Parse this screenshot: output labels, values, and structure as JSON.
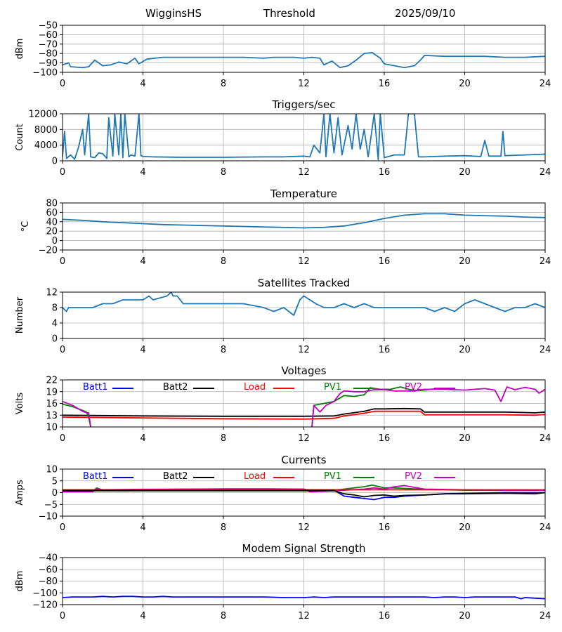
{
  "header": {
    "station": "WigginsHS",
    "mode": "Threshold",
    "date": "2025/09/10"
  },
  "colors": {
    "default": "#1f77b4",
    "batt1": "#0000ff",
    "batt2": "#000000",
    "load": "#ff0000",
    "pv1": "#008000",
    "pv2": "#c000c0",
    "grid": "#b0b0b0"
  },
  "x_axis": {
    "ticks": [
      0,
      4,
      8,
      12,
      16,
      20,
      24
    ],
    "range": [
      0,
      24
    ]
  },
  "chart_data": [
    {
      "id": "threshold",
      "type": "line",
      "title": "",
      "ylabel": "dBm",
      "ylim": [
        -100,
        -50
      ],
      "yticks": [
        -50,
        -60,
        -70,
        -80,
        -90,
        -100
      ],
      "series": [
        {
          "color_key": "default",
          "x": [
            0,
            0.3,
            0.4,
            1.0,
            1.3,
            1.6,
            2.0,
            2.4,
            2.8,
            3.2,
            3.6,
            3.8,
            4.2,
            4.6,
            5.0,
            6.0,
            8.0,
            9.0,
            10.0,
            10.5,
            11.0,
            11.5,
            12.0,
            12.4,
            12.8,
            13.0,
            13.4,
            13.8,
            14.2,
            14.6,
            15.0,
            15.4,
            15.8,
            16.0,
            16.5,
            17.0,
            17.5,
            17.8,
            18.0,
            19.0,
            20.0,
            21.0,
            22.0,
            23.0,
            24.0
          ],
          "y": [
            -92,
            -90,
            -94,
            -95,
            -94,
            -87,
            -93,
            -92,
            -89,
            -91,
            -85,
            -91,
            -86,
            -85,
            -84,
            -84,
            -84,
            -84,
            -85,
            -84,
            -84,
            -84,
            -85,
            -84,
            -85,
            -92,
            -88,
            -95,
            -93,
            -87,
            -80,
            -79,
            -85,
            -91,
            -93,
            -95,
            -93,
            -87,
            -82,
            -83,
            -83,
            -83,
            -84,
            -84,
            -83
          ]
        }
      ]
    },
    {
      "id": "triggers",
      "type": "line",
      "title": "Triggers/sec",
      "ylabel": "Count",
      "ylim": [
        0,
        12000
      ],
      "yticks": [
        0,
        4000,
        8000,
        12000
      ],
      "series": [
        {
          "color_key": "default",
          "x": [
            0,
            0.1,
            0.2,
            0.4,
            0.6,
            0.8,
            1.0,
            1.1,
            1.3,
            1.4,
            1.6,
            1.8,
            2.0,
            2.2,
            2.3,
            2.5,
            2.6,
            2.8,
            2.9,
            3.0,
            3.1,
            3.3,
            3.4,
            3.6,
            3.8,
            3.9,
            4.0,
            4.5,
            6.0,
            8.0,
            10.0,
            11.0,
            12.0,
            12.3,
            12.5,
            12.8,
            13.0,
            13.1,
            13.3,
            13.5,
            13.7,
            13.9,
            14.2,
            14.4,
            14.6,
            14.8,
            15.0,
            15.2,
            15.5,
            15.7,
            15.8,
            16.0,
            16.5,
            17.0,
            17.2,
            17.3,
            17.5,
            17.7,
            18.0,
            19.0,
            20.0,
            20.8,
            21.0,
            21.2,
            21.8,
            21.9,
            22.0,
            23.0,
            24.0
          ],
          "y": [
            1000,
            7500,
            600,
            1500,
            400,
            3500,
            8000,
            1500,
            12000,
            1000,
            800,
            2000,
            1800,
            600,
            11000,
            1200,
            12000,
            1500,
            12000,
            800,
            12000,
            1000,
            1500,
            1200,
            12000,
            1300,
            1100,
            1000,
            900,
            900,
            1000,
            1000,
            1200,
            1000,
            4000,
            2000,
            12000,
            1000,
            12000,
            2000,
            11000,
            1500,
            9000,
            3000,
            12000,
            3000,
            8000,
            1000,
            12000,
            300,
            12000,
            800,
            1500,
            1500,
            12000,
            12000,
            12000,
            1000,
            1000,
            1200,
            1300,
            1100,
            5200,
            1200,
            1200,
            7500,
            1300,
            1500,
            1700
          ]
        }
      ]
    },
    {
      "id": "temperature",
      "type": "line",
      "title": "Temperature",
      "ylabel": "°C",
      "ylim": [
        -20,
        80
      ],
      "yticks": [
        -20,
        0,
        20,
        40,
        60,
        80
      ],
      "series": [
        {
          "color_key": "default",
          "x": [
            0,
            1,
            2,
            3,
            4,
            5,
            6,
            7,
            8,
            9,
            10,
            11,
            12,
            13,
            14,
            15,
            16,
            17,
            18,
            19,
            20,
            21,
            22,
            23,
            24
          ],
          "y": [
            45,
            43,
            40,
            38,
            36,
            34,
            33,
            32,
            31,
            30,
            29,
            28,
            27,
            28,
            31,
            38,
            47,
            54,
            57,
            57,
            54,
            53,
            52,
            50,
            49
          ]
        }
      ]
    },
    {
      "id": "satellites",
      "type": "line",
      "title": "Satellites Tracked",
      "ylabel": "Number",
      "ylim": [
        0,
        12
      ],
      "yticks": [
        0,
        4,
        8,
        12
      ],
      "series": [
        {
          "color_key": "default",
          "x": [
            0,
            0.2,
            0.3,
            1.0,
            1.5,
            2.0,
            2.5,
            3.0,
            3.5,
            4.0,
            4.3,
            4.5,
            5.2,
            5.4,
            5.5,
            5.7,
            6.0,
            7.0,
            8.0,
            9.0,
            10.0,
            10.5,
            11.0,
            11.5,
            11.8,
            12.0,
            12.3,
            12.6,
            13.0,
            13.5,
            14.0,
            14.5,
            15.0,
            15.5,
            16.0,
            17.0,
            18.0,
            18.5,
            19.0,
            19.5,
            20.0,
            20.5,
            21.0,
            21.5,
            22.0,
            22.5,
            23.0,
            23.5,
            24.0
          ],
          "y": [
            8,
            7,
            8,
            8,
            8,
            9,
            9,
            10,
            10,
            10,
            11,
            10,
            11,
            12,
            11,
            11,
            9,
            9,
            9,
            9,
            8,
            7,
            8,
            6,
            10,
            11,
            10,
            9,
            8,
            8,
            9,
            8,
            9,
            8,
            8,
            8,
            8,
            7,
            8,
            7,
            9,
            10,
            9,
            8,
            7,
            8,
            8,
            9,
            8
          ]
        }
      ]
    },
    {
      "id": "voltages",
      "type": "line",
      "title": "Voltages",
      "ylabel": "Volts",
      "ylim": [
        10,
        22
      ],
      "yticks": [
        10,
        13,
        16,
        19,
        22
      ],
      "legend": [
        "Batt1",
        "Batt2",
        "Load",
        "PV1",
        "PV2"
      ],
      "series": [
        {
          "name": "Batt2",
          "color_key": "batt2",
          "x": [
            0,
            4,
            8,
            12,
            13.5,
            14,
            15,
            15.5,
            16,
            17,
            17.8,
            18,
            20,
            22,
            23.5,
            24
          ],
          "y": [
            13.0,
            12.8,
            12.7,
            12.7,
            12.8,
            13.3,
            14.0,
            14.6,
            14.6,
            14.7,
            14.6,
            13.8,
            13.8,
            13.8,
            13.6,
            13.8
          ]
        },
        {
          "name": "Load",
          "color_key": "load",
          "x": [
            0,
            4,
            8,
            12,
            13.5,
            14,
            15,
            15.5,
            16,
            17,
            17.8,
            18,
            20,
            22,
            23.5,
            24
          ],
          "y": [
            12.5,
            12.3,
            12.1,
            12.0,
            12.2,
            12.8,
            13.5,
            14.0,
            14.0,
            14.0,
            14.0,
            13.1,
            13.1,
            13.1,
            13.0,
            13.2
          ]
        },
        {
          "name": "PV1",
          "color_key": "pv1",
          "x": [
            0,
            0.5,
            1.0,
            1.2,
            1.3,
            1.4
          ],
          "y": [
            15.8,
            15.2,
            14.2,
            13.8,
            12.5,
            10
          ]
        },
        {
          "name": "PV1",
          "color_key": "pv1",
          "x": [
            12.4,
            12.5,
            13,
            13.5,
            14,
            14.5,
            15,
            15.3,
            15.8,
            16.3,
            16.8,
            17.3,
            17.8,
            18.5,
            19.5
          ],
          "y": [
            10,
            15.5,
            16.0,
            16.5,
            18.0,
            17.8,
            18.2,
            20.0,
            19.6,
            19.6,
            20.2,
            19.5,
            19.3,
            19.7,
            19.7
          ]
        },
        {
          "name": "PV2",
          "color_key": "pv2",
          "x": [
            0,
            0.5,
            1.0,
            1.2,
            1.3,
            1.4
          ],
          "y": [
            16.5,
            15.5,
            14.0,
            13.6,
            13.6,
            10
          ]
        },
        {
          "name": "PV2",
          "color_key": "pv2",
          "x": [
            12.4,
            12.5,
            12.8,
            13.1,
            13.5,
            13.8,
            14.0,
            14.5,
            15.0,
            15.5,
            16.0,
            16.5,
            17.0,
            17.5,
            18.0,
            19.0,
            20.0,
            21.0,
            21.5,
            21.8,
            22.1,
            22.5,
            23.0,
            23.5,
            23.7,
            24.0
          ],
          "y": [
            10,
            15.5,
            13.8,
            15.5,
            16.5,
            18.5,
            19.2,
            19.0,
            19.0,
            19.5,
            19.5,
            19.2,
            19.2,
            19.2,
            19.6,
            19.6,
            19.4,
            19.8,
            19.4,
            16.5,
            20.2,
            19.5,
            20.1,
            19.6,
            18.6,
            19.6
          ]
        }
      ]
    },
    {
      "id": "currents",
      "type": "line",
      "title": "Currents",
      "ylabel": "Amps",
      "ylim": [
        -10,
        10
      ],
      "yticks": [
        -10,
        -5,
        0,
        5,
        10
      ],
      "legend": [
        "Batt1",
        "Batt2",
        "Load",
        "PV1",
        "PV2"
      ],
      "series": [
        {
          "name": "PV1",
          "color_key": "pv1",
          "x": [
            0,
            1.5,
            1.7,
            2.0,
            4,
            8,
            10,
            12,
            12.3,
            13,
            14,
            15,
            15.4,
            16,
            16.5,
            17,
            18,
            20,
            22,
            24
          ],
          "y": [
            0.5,
            0.5,
            2.0,
            1.0,
            1.3,
            1.6,
            1.6,
            1.5,
            0.8,
            0.6,
            1.5,
            2.5,
            3.2,
            2.0,
            2.0,
            1.8,
            1.4,
            1.0,
            1.0,
            1.0
          ]
        },
        {
          "name": "PV2",
          "color_key": "pv2",
          "x": [
            0,
            1.5,
            1.7,
            2.0,
            4,
            8,
            10,
            12,
            12.3,
            13,
            14,
            15,
            15.5,
            16,
            16.5,
            17,
            18,
            20,
            22,
            24
          ],
          "y": [
            0.4,
            0.4,
            1.5,
            1.2,
            1.4,
            1.5,
            1.5,
            1.4,
            0.4,
            0.6,
            1.0,
            1.5,
            2.0,
            1.5,
            2.5,
            3.0,
            1.5,
            1.2,
            1.0,
            1.0
          ]
        },
        {
          "name": "Load",
          "color_key": "load",
          "x": [
            0,
            4,
            8,
            12,
            16,
            20,
            24
          ],
          "y": [
            1.2,
            1.2,
            1.2,
            1.2,
            1.2,
            1.2,
            1.2
          ]
        },
        {
          "name": "Batt1",
          "color_key": "batt1",
          "x": [
            0,
            4,
            8,
            12,
            13.5,
            14,
            14.5,
            15.0,
            15.5,
            16.0,
            16.5,
            17.0,
            18.0,
            19.0,
            20,
            22,
            24
          ],
          "y": [
            1.0,
            1.0,
            1.0,
            1.0,
            1.0,
            -1.5,
            -2.0,
            -2.5,
            -3.0,
            -2.0,
            -2.0,
            -1.5,
            -1.0,
            -0.5,
            -0.3,
            0,
            0
          ]
        },
        {
          "name": "Batt2",
          "color_key": "batt2",
          "x": [
            0,
            4,
            8,
            12,
            13.5,
            14,
            14.5,
            15.0,
            15.5,
            16.0,
            16.5,
            17.0,
            18.0,
            19.0,
            20,
            22,
            23.5,
            24
          ],
          "y": [
            0.8,
            0.8,
            0.8,
            0.8,
            0.8,
            -0.5,
            -1.0,
            -1.8,
            -1.2,
            -1.0,
            -1.5,
            -1.2,
            -1.0,
            -0.5,
            -0.5,
            -0.3,
            -0.5,
            0
          ]
        }
      ]
    },
    {
      "id": "modem",
      "type": "line",
      "title": "Modem Signal Strength",
      "ylabel": "dBm",
      "ylim": [
        -120,
        -40
      ],
      "yticks": [
        -40,
        -60,
        -80,
        -100,
        -120
      ],
      "series": [
        {
          "color_key": "batt1",
          "x": [
            0,
            0.5,
            1,
            1.5,
            2,
            2.5,
            3,
            3.5,
            4,
            4.5,
            5,
            5.5,
            6,
            6.5,
            7,
            7.5,
            8,
            8.5,
            9,
            9.5,
            10,
            11,
            12,
            12.5,
            13,
            13.5,
            14,
            15,
            16,
            17,
            18,
            18.5,
            19,
            19.5,
            20,
            20.5,
            21,
            21.5,
            22,
            22.5,
            22.8,
            23,
            23.5,
            24
          ],
          "y": [
            -108,
            -107,
            -107,
            -107,
            -106,
            -107,
            -106,
            -106,
            -107,
            -107,
            -106,
            -107,
            -107,
            -107,
            -107,
            -107,
            -107,
            -107,
            -107,
            -107,
            -107,
            -108,
            -108,
            -107,
            -108,
            -107,
            -107,
            -107,
            -107,
            -107,
            -107,
            -108,
            -107,
            -107,
            -108,
            -107,
            -107,
            -107,
            -107,
            -107,
            -110,
            -108,
            -109,
            -110
          ]
        }
      ]
    }
  ]
}
